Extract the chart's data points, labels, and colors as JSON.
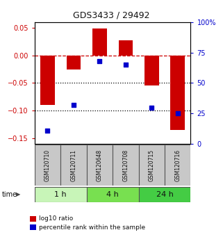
{
  "title": "GDS3433 / 29492",
  "samples": [
    "GSM120710",
    "GSM120711",
    "GSM120648",
    "GSM120708",
    "GSM120715",
    "GSM120716"
  ],
  "log10_ratio": [
    -0.09,
    -0.025,
    0.048,
    0.027,
    -0.055,
    -0.135
  ],
  "percentile_rank": [
    11,
    32,
    68,
    65,
    30,
    25
  ],
  "time_groups": [
    {
      "label": "1 h",
      "cols": [
        0,
        1
      ],
      "color": "#c8f5b8"
    },
    {
      "label": "4 h",
      "cols": [
        2,
        3
      ],
      "color": "#78e050"
    },
    {
      "label": "24 h",
      "cols": [
        4,
        5
      ],
      "color": "#44cc44"
    }
  ],
  "bar_color": "#cc0000",
  "dot_color": "#0000cc",
  "ylim_left": [
    -0.16,
    0.06
  ],
  "ylim_right": [
    0,
    100
  ],
  "hline_color": "#cc0000",
  "dotline_values": [
    -0.05,
    -0.1
  ],
  "bg_color": "#ffffff",
  "label_area_color": "#c8c8c8",
  "label_border_color": "#555555",
  "left_yticks": [
    0.05,
    0,
    -0.05,
    -0.1,
    -0.15
  ],
  "right_yticks": [
    0,
    25,
    50,
    75,
    100
  ],
  "right_yticklabels": [
    "0",
    "25",
    "50",
    "75",
    "100%"
  ]
}
